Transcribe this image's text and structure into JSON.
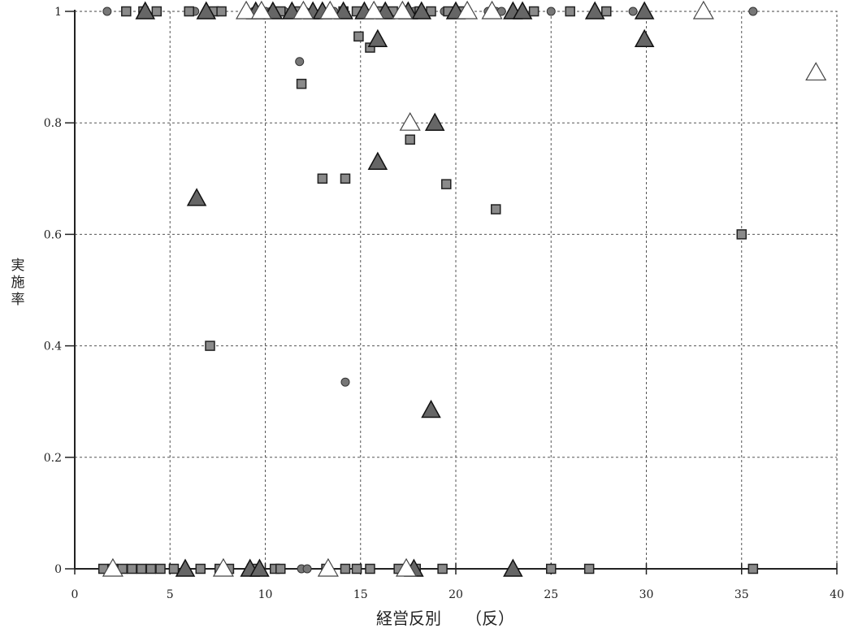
{
  "chart_data": {
    "type": "scatter",
    "title": "",
    "xlabel": "経営反別　　（反）",
    "ylabel": "実施率",
    "xlim": [
      0,
      40
    ],
    "ylim": [
      0,
      1
    ],
    "xticks": [
      "0",
      "5",
      "10",
      "15",
      "20",
      "25",
      "30",
      "35",
      "40"
    ],
    "yticks": [
      "0",
      "0.2",
      "0.4",
      "0.6",
      "0.8",
      "1"
    ],
    "grid": true,
    "series": [
      {
        "marker": "circle",
        "points": [
          [
            1.7,
            1
          ],
          [
            6.3,
            1
          ],
          [
            9.4,
            1
          ],
          [
            9.7,
            1
          ],
          [
            10.0,
            1
          ],
          [
            10.3,
            1
          ],
          [
            11.0,
            1
          ],
          [
            12.1,
            1
          ],
          [
            13.6,
            1
          ],
          [
            15.2,
            1
          ],
          [
            17.8,
            1
          ],
          [
            19.4,
            1
          ],
          [
            21.7,
            1
          ],
          [
            22.1,
            1
          ],
          [
            22.4,
            1
          ],
          [
            25.0,
            1
          ],
          [
            29.3,
            1
          ],
          [
            35.6,
            1
          ],
          [
            11.8,
            0.91
          ],
          [
            14.2,
            0.335
          ],
          [
            11.9,
            0
          ],
          [
            12.2,
            0
          ]
        ]
      },
      {
        "marker": "square",
        "points": [
          [
            2.7,
            1
          ],
          [
            3.6,
            1
          ],
          [
            4.3,
            1
          ],
          [
            6.0,
            1
          ],
          [
            7.3,
            1
          ],
          [
            7.7,
            1
          ],
          [
            10.8,
            1
          ],
          [
            11.6,
            1
          ],
          [
            14.1,
            1
          ],
          [
            14.8,
            1
          ],
          [
            15.9,
            1
          ],
          [
            16.7,
            1
          ],
          [
            18.1,
            1
          ],
          [
            18.7,
            1
          ],
          [
            19.6,
            1
          ],
          [
            20.3,
            1
          ],
          [
            24.1,
            1
          ],
          [
            26.0,
            1
          ],
          [
            27.9,
            1
          ],
          [
            14.9,
            0.955
          ],
          [
            15.5,
            0.935
          ],
          [
            11.9,
            0.87
          ],
          [
            17.6,
            0.77
          ],
          [
            13.0,
            0.7
          ],
          [
            14.2,
            0.7
          ],
          [
            19.5,
            0.69
          ],
          [
            22.1,
            0.645
          ],
          [
            35.0,
            0.6
          ],
          [
            7.1,
            0.4
          ],
          [
            1.5,
            0
          ],
          [
            2.0,
            0
          ],
          [
            2.5,
            0
          ],
          [
            3.0,
            0
          ],
          [
            3.5,
            0
          ],
          [
            4.0,
            0
          ],
          [
            4.5,
            0
          ],
          [
            5.2,
            0
          ],
          [
            6.6,
            0
          ],
          [
            7.6,
            0
          ],
          [
            8.1,
            0
          ],
          [
            9.3,
            0
          ],
          [
            10.5,
            0
          ],
          [
            10.8,
            0
          ],
          [
            13.2,
            0
          ],
          [
            14.2,
            0
          ],
          [
            14.8,
            0
          ],
          [
            15.5,
            0
          ],
          [
            17.0,
            0
          ],
          [
            17.9,
            0
          ],
          [
            19.3,
            0
          ],
          [
            25.0,
            0
          ],
          [
            27.0,
            0
          ],
          [
            35.6,
            0
          ]
        ]
      },
      {
        "marker": "triangle-filled",
        "points": [
          [
            3.7,
            1
          ],
          [
            6.9,
            1
          ],
          [
            9.5,
            1
          ],
          [
            10.4,
            1
          ],
          [
            11.4,
            1
          ],
          [
            12.5,
            1
          ],
          [
            13.0,
            1
          ],
          [
            14.1,
            1
          ],
          [
            15.2,
            1
          ],
          [
            16.3,
            1
          ],
          [
            17.5,
            1
          ],
          [
            18.2,
            1
          ],
          [
            20.0,
            1
          ],
          [
            23.0,
            1
          ],
          [
            23.5,
            1
          ],
          [
            27.3,
            1
          ],
          [
            29.9,
            1
          ],
          [
            15.9,
            0.95
          ],
          [
            29.9,
            0.95
          ],
          [
            18.9,
            0.8
          ],
          [
            15.9,
            0.73
          ],
          [
            6.4,
            0.665
          ],
          [
            18.7,
            0.285
          ],
          [
            5.8,
            0
          ],
          [
            9.2,
            0
          ],
          [
            9.7,
            0
          ],
          [
            17.8,
            0
          ],
          [
            23.0,
            0
          ]
        ]
      },
      {
        "marker": "triangle-open",
        "points": [
          [
            9.0,
            1
          ],
          [
            9.8,
            1
          ],
          [
            12.0,
            1
          ],
          [
            13.4,
            1
          ],
          [
            15.7,
            1
          ],
          [
            17.2,
            1
          ],
          [
            20.6,
            1
          ],
          [
            21.9,
            1
          ],
          [
            33.0,
            1
          ],
          [
            38.9,
            0.89
          ],
          [
            17.6,
            0.8
          ],
          [
            2.0,
            0
          ],
          [
            7.8,
            0
          ],
          [
            13.3,
            0
          ],
          [
            17.4,
            0
          ]
        ]
      }
    ]
  }
}
